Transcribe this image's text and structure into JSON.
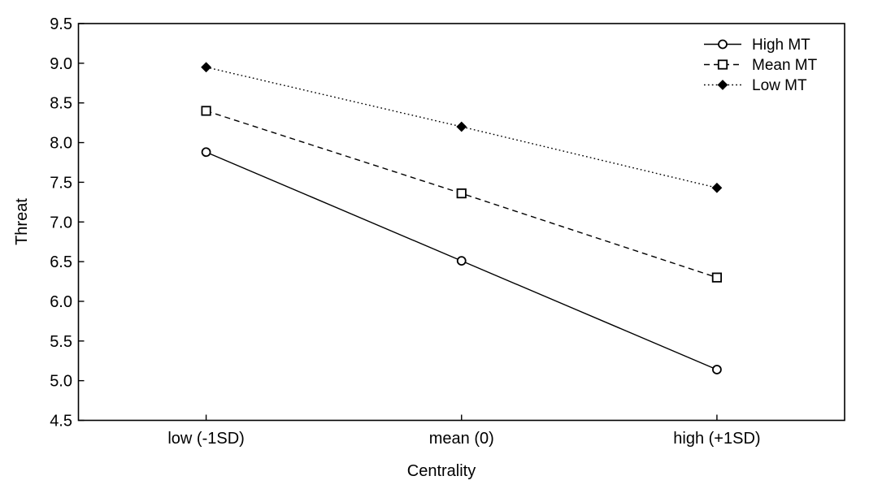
{
  "figure": {
    "background_color": "#ffffff",
    "ink_color": "#000000"
  },
  "chart_data": {
    "type": "line",
    "title": "",
    "xlabel": "Centrality",
    "ylabel": "Threat",
    "categories": [
      "low (-1SD)",
      "mean (0)",
      "high (+1SD)"
    ],
    "series": [
      {
        "name": "High MT",
        "marker": "circle-open",
        "line_style": "solid",
        "values": [
          7.88,
          6.51,
          5.14
        ]
      },
      {
        "name": "Mean MT",
        "marker": "square-open",
        "line_style": "dashed",
        "values": [
          8.4,
          7.36,
          6.3
        ]
      },
      {
        "name": "Low MT",
        "marker": "diamond-filled",
        "line_style": "dotted",
        "values": [
          8.95,
          8.2,
          7.43
        ]
      }
    ],
    "ylim": [
      4.5,
      9.5
    ],
    "ytick_labels": [
      "9.5",
      "9.0",
      "8.5",
      "8.0",
      "7.5",
      "7.0",
      "6.5",
      "6.0",
      "5.5",
      "5.0",
      "4.5"
    ],
    "grid": false,
    "legend_position": "top-right-inside"
  }
}
